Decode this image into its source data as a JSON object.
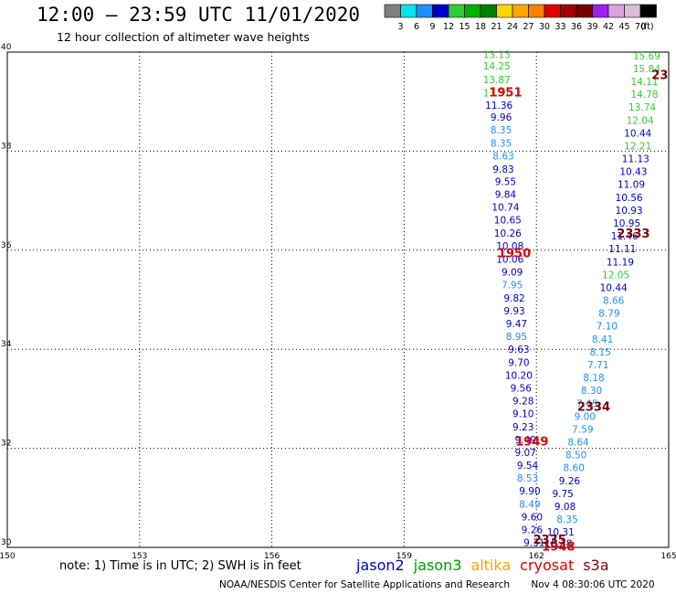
{
  "header": {
    "title": "12:00 – 23:59 UTC 11/01/2020",
    "subtitle": "12 hour collection of altimeter wave heights"
  },
  "colorbar": {
    "unit": "(ft)",
    "bins": [
      {
        "color": "#808080",
        "label": "3"
      },
      {
        "color": "#00e5ee",
        "label": "6"
      },
      {
        "color": "#1e90ff",
        "label": "9"
      },
      {
        "color": "#0000cd",
        "label": "12"
      },
      {
        "color": "#32cd32",
        "label": "15"
      },
      {
        "color": "#00b000",
        "label": "18"
      },
      {
        "color": "#008000",
        "label": "21"
      },
      {
        "color": "#ffd700",
        "label": "24"
      },
      {
        "color": "#ffa500",
        "label": "27"
      },
      {
        "color": "#ff7f00",
        "label": "30"
      },
      {
        "color": "#e00000",
        "label": "33"
      },
      {
        "color": "#a00000",
        "label": "36"
      },
      {
        "color": "#7a0000",
        "label": "39"
      },
      {
        "color": "#a020f0",
        "label": "42"
      },
      {
        "color": "#dda0dd",
        "label": "45"
      },
      {
        "color": "#d8bfd8",
        "label": "70"
      },
      {
        "color": "#000000",
        "label": ""
      }
    ]
  },
  "footer": {
    "note": "note:  1) Time is in UTC;  2) SWH is in feet",
    "credit": "NOAA/NESDIS Center for Satellite Applications and Research",
    "timestamp": "Nov  4 08:30:06 UTC 2020"
  },
  "satellites": [
    {
      "name": "jason2",
      "color": "#0000cd"
    },
    {
      "name": "jason3",
      "color": "#00a000"
    },
    {
      "name": "altika",
      "color": "#ffa500"
    },
    {
      "name": "cryosat",
      "color": "#e00000"
    },
    {
      "name": "s3a",
      "color": "#8b0000"
    }
  ],
  "chart_data": {
    "type": "scatter",
    "title": "12:00 – 23:59 UTC 11/01/2020",
    "subtitle": "12 hour collection of altimeter wave heights",
    "xlim": [
      150,
      165
    ],
    "ylim": [
      30,
      40
    ],
    "xticks": [
      150,
      153,
      156,
      159,
      162,
      165
    ],
    "yticks": [
      30,
      32,
      34,
      36,
      38,
      40
    ],
    "grid": true,
    "colors": {
      "green": "#32cd32",
      "cyan": "#1e90ff",
      "blue": "#0000cd",
      "red": "#e00000",
      "darkred": "#7a0000"
    },
    "pass_labels": [
      {
        "text": "1951",
        "lon": 161.3,
        "lat": 39.2,
        "color": "red"
      },
      {
        "text": "1950",
        "lon": 161.5,
        "lat": 35.95,
        "color": "red"
      },
      {
        "text": "1949",
        "lon": 161.9,
        "lat": 32.15,
        "color": "red"
      },
      {
        "text": "1948",
        "lon": 162.5,
        "lat": 30.03,
        "color": "red"
      },
      {
        "text": "2333",
        "lon": 164.2,
        "lat": 36.35,
        "color": "darkred"
      },
      {
        "text": "2334",
        "lon": 163.3,
        "lat": 32.85,
        "color": "darkred"
      },
      {
        "text": "2335",
        "lon": 162.3,
        "lat": 30.17,
        "color": "darkred"
      },
      {
        "text": "23",
        "lon": 164.8,
        "lat": 39.55,
        "color": "darkred"
      }
    ],
    "series": [
      {
        "name": "jason2",
        "points": [
          {
            "lon": 161.1,
            "lat": 39.95,
            "swh": "13.13",
            "color": "green"
          },
          {
            "lon": 161.1,
            "lat": 39.72,
            "swh": "14.25",
            "color": "green"
          },
          {
            "lon": 161.1,
            "lat": 39.45,
            "swh": "13.87",
            "color": "green"
          },
          {
            "lon": 161.1,
            "lat": 39.18,
            "swh": "13.51",
            "color": "green"
          },
          {
            "lon": 161.15,
            "lat": 38.93,
            "swh": "11.36",
            "color": "blue"
          },
          {
            "lon": 161.2,
            "lat": 38.69,
            "swh": "9.96",
            "color": "blue"
          },
          {
            "lon": 161.2,
            "lat": 38.43,
            "swh": "8.35",
            "color": "cyan"
          },
          {
            "lon": 161.2,
            "lat": 38.16,
            "swh": "8.35",
            "color": "cyan"
          },
          {
            "lon": 161.25,
            "lat": 37.91,
            "swh": "8.63",
            "color": "cyan"
          },
          {
            "lon": 161.25,
            "lat": 37.64,
            "swh": "9.83",
            "color": "blue"
          },
          {
            "lon": 161.3,
            "lat": 37.39,
            "swh": "9.55",
            "color": "blue"
          },
          {
            "lon": 161.3,
            "lat": 37.13,
            "swh": "9.84",
            "color": "blue"
          },
          {
            "lon": 161.3,
            "lat": 36.87,
            "swh": "10.74",
            "color": "blue"
          },
          {
            "lon": 161.35,
            "lat": 36.61,
            "swh": "10.65",
            "color": "blue"
          },
          {
            "lon": 161.35,
            "lat": 36.35,
            "swh": "10.26",
            "color": "blue"
          },
          {
            "lon": 161.4,
            "lat": 36.09,
            "swh": "10.08",
            "color": "blue"
          },
          {
            "lon": 161.4,
            "lat": 35.82,
            "swh": "10.06",
            "color": "blue"
          },
          {
            "lon": 161.45,
            "lat": 35.56,
            "swh": "9.09",
            "color": "blue"
          },
          {
            "lon": 161.45,
            "lat": 35.3,
            "swh": "7.95",
            "color": "cyan"
          },
          {
            "lon": 161.5,
            "lat": 35.04,
            "swh": "9.82",
            "color": "blue"
          },
          {
            "lon": 161.5,
            "lat": 34.78,
            "swh": "9.93",
            "color": "blue"
          },
          {
            "lon": 161.55,
            "lat": 34.52,
            "swh": "9.47",
            "color": "blue"
          },
          {
            "lon": 161.55,
            "lat": 34.26,
            "swh": "8.95",
            "color": "cyan"
          },
          {
            "lon": 161.6,
            "lat": 34.0,
            "swh": "9.63",
            "color": "blue"
          },
          {
            "lon": 161.6,
            "lat": 33.74,
            "swh": "9.70",
            "color": "blue"
          },
          {
            "lon": 161.6,
            "lat": 33.48,
            "swh": "10.20",
            "color": "blue"
          },
          {
            "lon": 161.65,
            "lat": 33.22,
            "swh": "9.56",
            "color": "blue"
          },
          {
            "lon": 161.7,
            "lat": 32.96,
            "swh": "9.28",
            "color": "blue"
          },
          {
            "lon": 161.7,
            "lat": 32.7,
            "swh": "9.10",
            "color": "blue"
          },
          {
            "lon": 161.7,
            "lat": 32.44,
            "swh": "9.23",
            "color": "blue"
          },
          {
            "lon": 161.75,
            "lat": 32.18,
            "swh": "9.49",
            "color": "blue"
          },
          {
            "lon": 161.75,
            "lat": 31.92,
            "swh": "9.07",
            "color": "blue"
          },
          {
            "lon": 161.8,
            "lat": 31.66,
            "swh": "9.54",
            "color": "blue"
          },
          {
            "lon": 161.8,
            "lat": 31.4,
            "swh": "8.53",
            "color": "cyan"
          },
          {
            "lon": 161.85,
            "lat": 31.14,
            "swh": "9.90",
            "color": "blue"
          },
          {
            "lon": 161.85,
            "lat": 30.88,
            "swh": "8.49",
            "color": "cyan"
          },
          {
            "lon": 161.9,
            "lat": 30.62,
            "swh": "9.60",
            "color": "blue"
          },
          {
            "lon": 161.9,
            "lat": 30.36,
            "swh": "9.26",
            "color": "blue"
          },
          {
            "lon": 161.95,
            "lat": 30.1,
            "swh": "9.31",
            "color": "blue"
          }
        ]
      },
      {
        "name": "jason3",
        "points": [
          {
            "lon": 164.5,
            "lat": 39.93,
            "swh": "15.69",
            "color": "green"
          },
          {
            "lon": 164.5,
            "lat": 39.67,
            "swh": "15.84",
            "color": "green"
          },
          {
            "lon": 164.45,
            "lat": 39.41,
            "swh": "14.11",
            "color": "green"
          },
          {
            "lon": 164.45,
            "lat": 39.15,
            "swh": "14.78",
            "color": "green"
          },
          {
            "lon": 164.4,
            "lat": 38.89,
            "swh": "13.74",
            "color": "green"
          },
          {
            "lon": 164.35,
            "lat": 38.63,
            "swh": "12.04",
            "color": "green"
          },
          {
            "lon": 164.3,
            "lat": 38.37,
            "swh": "10.44",
            "color": "blue"
          },
          {
            "lon": 164.3,
            "lat": 38.11,
            "swh": "12.21",
            "color": "green"
          },
          {
            "lon": 164.25,
            "lat": 37.85,
            "swh": "11.13",
            "color": "blue"
          },
          {
            "lon": 164.2,
            "lat": 37.59,
            "swh": "10.43",
            "color": "blue"
          },
          {
            "lon": 164.15,
            "lat": 37.33,
            "swh": "11.09",
            "color": "blue"
          },
          {
            "lon": 164.1,
            "lat": 37.07,
            "swh": "10.56",
            "color": "blue"
          },
          {
            "lon": 164.1,
            "lat": 36.81,
            "swh": "10.93",
            "color": "blue"
          },
          {
            "lon": 164.05,
            "lat": 36.55,
            "swh": "10.95",
            "color": "blue"
          },
          {
            "lon": 164.0,
            "lat": 36.29,
            "swh": "11.46",
            "color": "blue"
          },
          {
            "lon": 163.95,
            "lat": 36.03,
            "swh": "11.11",
            "color": "blue"
          },
          {
            "lon": 163.9,
            "lat": 35.77,
            "swh": "11.19",
            "color": "blue"
          },
          {
            "lon": 163.8,
            "lat": 35.51,
            "swh": "12.05",
            "color": "green"
          },
          {
            "lon": 163.75,
            "lat": 35.25,
            "swh": "10.44",
            "color": "blue"
          },
          {
            "lon": 163.75,
            "lat": 34.99,
            "swh": "8.66",
            "color": "cyan"
          },
          {
            "lon": 163.65,
            "lat": 34.73,
            "swh": "8.79",
            "color": "cyan"
          },
          {
            "lon": 163.6,
            "lat": 34.47,
            "swh": "7.10",
            "color": "cyan"
          },
          {
            "lon": 163.5,
            "lat": 34.21,
            "swh": "8.41",
            "color": "cyan"
          },
          {
            "lon": 163.45,
            "lat": 33.95,
            "swh": "8.15",
            "color": "cyan"
          },
          {
            "lon": 163.4,
            "lat": 33.69,
            "swh": "7.71",
            "color": "cyan"
          },
          {
            "lon": 163.3,
            "lat": 33.43,
            "swh": "8.18",
            "color": "cyan"
          },
          {
            "lon": 163.25,
            "lat": 33.17,
            "swh": "8.30",
            "color": "cyan"
          },
          {
            "lon": 163.15,
            "lat": 32.91,
            "swh": "7.45",
            "color": "cyan"
          },
          {
            "lon": 163.1,
            "lat": 32.65,
            "swh": "9.00",
            "color": "cyan"
          },
          {
            "lon": 163.05,
            "lat": 32.39,
            "swh": "7.59",
            "color": "cyan"
          },
          {
            "lon": 162.95,
            "lat": 32.13,
            "swh": "8.64",
            "color": "cyan"
          },
          {
            "lon": 162.9,
            "lat": 31.87,
            "swh": "8.50",
            "color": "cyan"
          },
          {
            "lon": 162.85,
            "lat": 31.61,
            "swh": "8.60",
            "color": "cyan"
          },
          {
            "lon": 162.75,
            "lat": 31.35,
            "swh": "9.26",
            "color": "blue"
          },
          {
            "lon": 162.6,
            "lat": 31.09,
            "swh": "9.75",
            "color": "blue"
          },
          {
            "lon": 162.65,
            "lat": 30.83,
            "swh": "9.08",
            "color": "blue"
          },
          {
            "lon": 162.7,
            "lat": 30.57,
            "swh": "8.35",
            "color": "cyan"
          },
          {
            "lon": 162.55,
            "lat": 30.31,
            "swh": "10.31",
            "color": "blue"
          },
          {
            "lon": 162.5,
            "lat": 30.08,
            "swh": "10.38",
            "color": "blue"
          }
        ]
      }
    ]
  }
}
